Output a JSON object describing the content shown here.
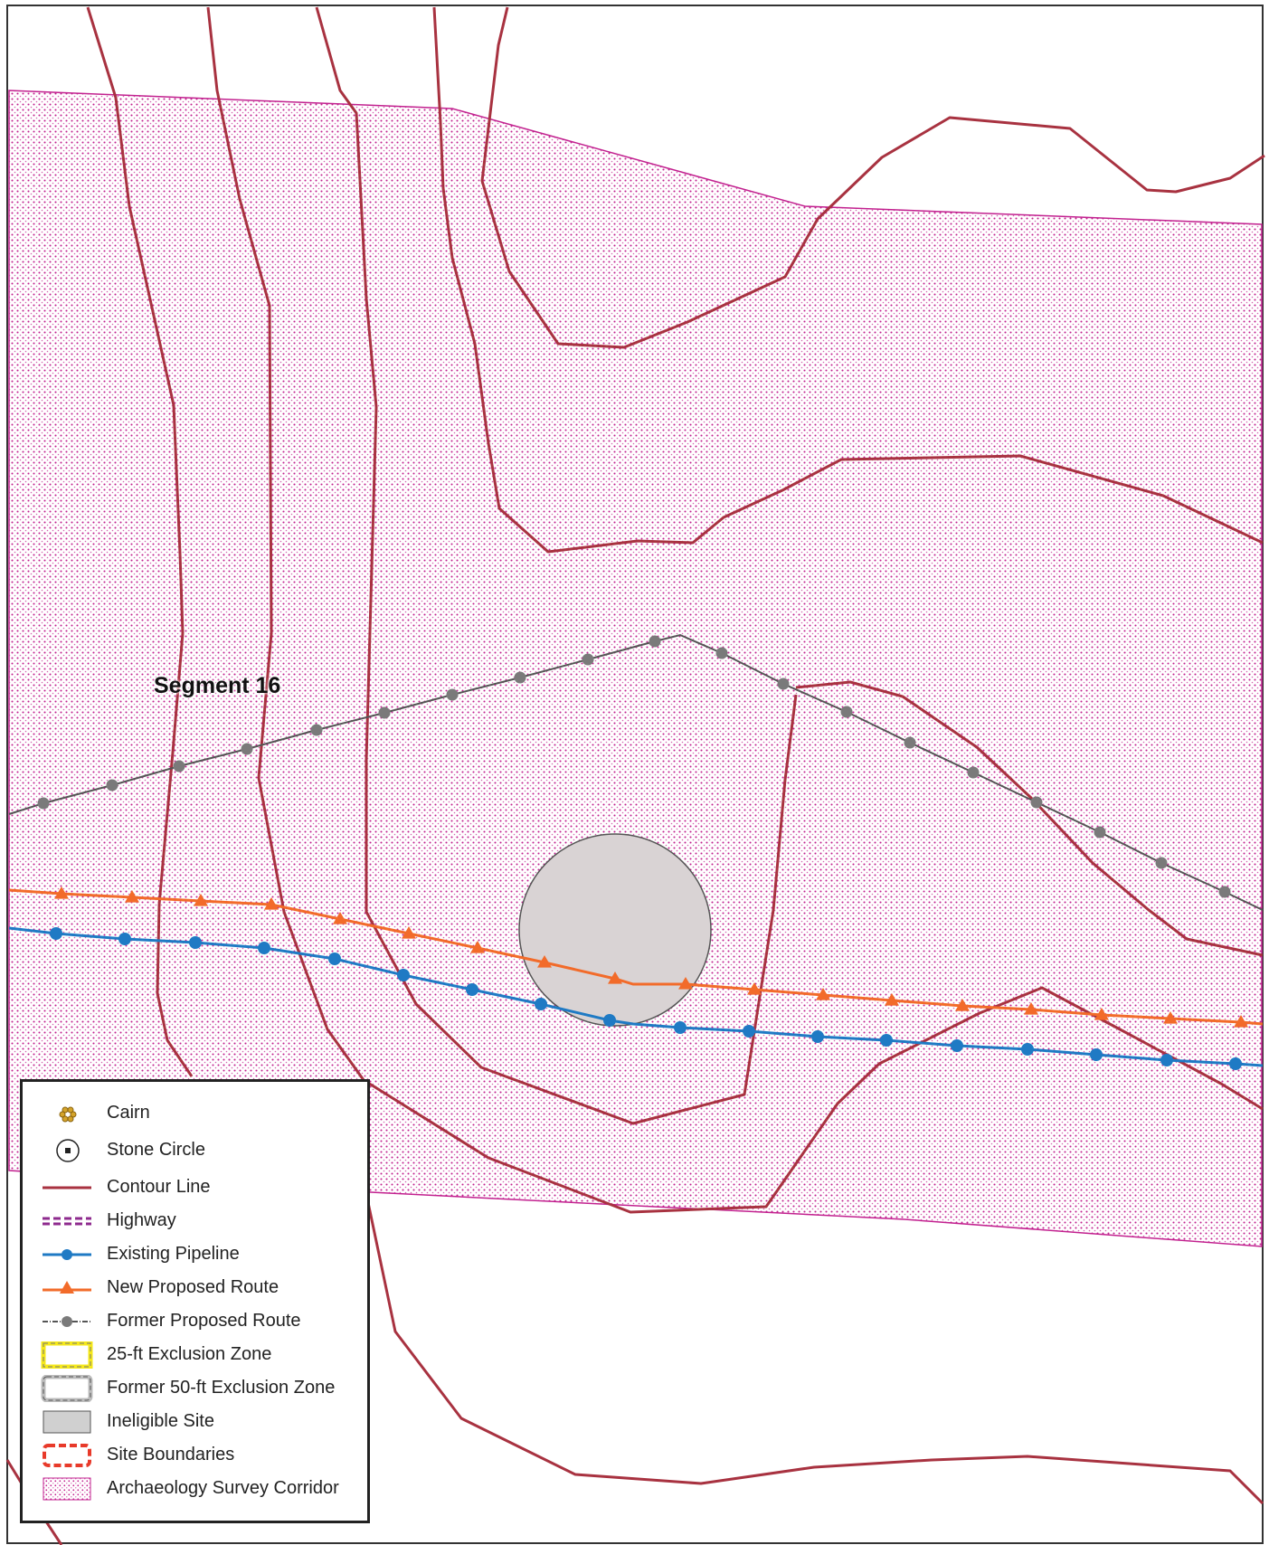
{
  "map": {
    "label": "Segment 16",
    "colors": {
      "contour": "#a83240",
      "corridor": "#c2218f",
      "existing_pipeline": "#1f7ac4",
      "new_route": "#f26b2a",
      "former_route": "#555555",
      "former_route_point": "#7a7a7a",
      "ineligible_site": "#d9d3d4",
      "exclusion_25ft": "#f5e81a",
      "site_boundaries": "#e83a2a",
      "highway": "#8e2a8e"
    }
  },
  "legend": {
    "items": [
      {
        "label": "Cairn",
        "icon": "cairn-icon"
      },
      {
        "label": "Stone Circle",
        "icon": "stone-circle-icon"
      },
      {
        "label": "Contour Line",
        "icon": "contour-line-icon"
      },
      {
        "label": "Highway",
        "icon": "highway-icon"
      },
      {
        "label": "Existing Pipeline",
        "icon": "existing-pipeline-icon"
      },
      {
        "label": "New Proposed Route",
        "icon": "new-proposed-route-icon"
      },
      {
        "label": "Former Proposed Route",
        "icon": "former-proposed-route-icon"
      },
      {
        "label": "25-ft Exclusion Zone",
        "icon": "exclusion-25ft-icon"
      },
      {
        "label": "Former 50-ft Exclusion Zone",
        "icon": "former-exclusion-50ft-icon"
      },
      {
        "label": "Ineligible Site",
        "icon": "ineligible-site-icon"
      },
      {
        "label": "Site Boundaries",
        "icon": "site-boundaries-icon"
      },
      {
        "label": "Archaeology Survey Corridor",
        "icon": "survey-corridor-icon"
      }
    ]
  }
}
